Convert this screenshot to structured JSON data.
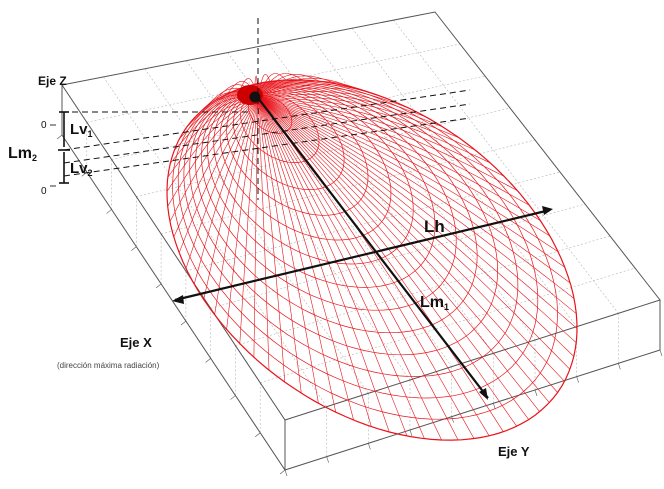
{
  "axes": {
    "z_label": "Eje Z",
    "x_label": "Eje X",
    "x_sublabel": "(dirección máxima radiación)",
    "y_label": "Eje Y",
    "z_tick_top": "0",
    "z_tick_bottom": "0"
  },
  "dimensions": {
    "lh": "Lh",
    "lm1": "Lm",
    "lm1_sub": "1",
    "lm2": "Lm",
    "lm2_sub": "2",
    "lv1": "Lv",
    "lv1_sub": "1",
    "lv2": "Lv",
    "lv2_sub": "2"
  },
  "colors": {
    "lobe": "#e8141b",
    "box": "#555555",
    "grid": "#b5b5b5",
    "arrow": "#111111",
    "feed": "#cc0000"
  }
}
